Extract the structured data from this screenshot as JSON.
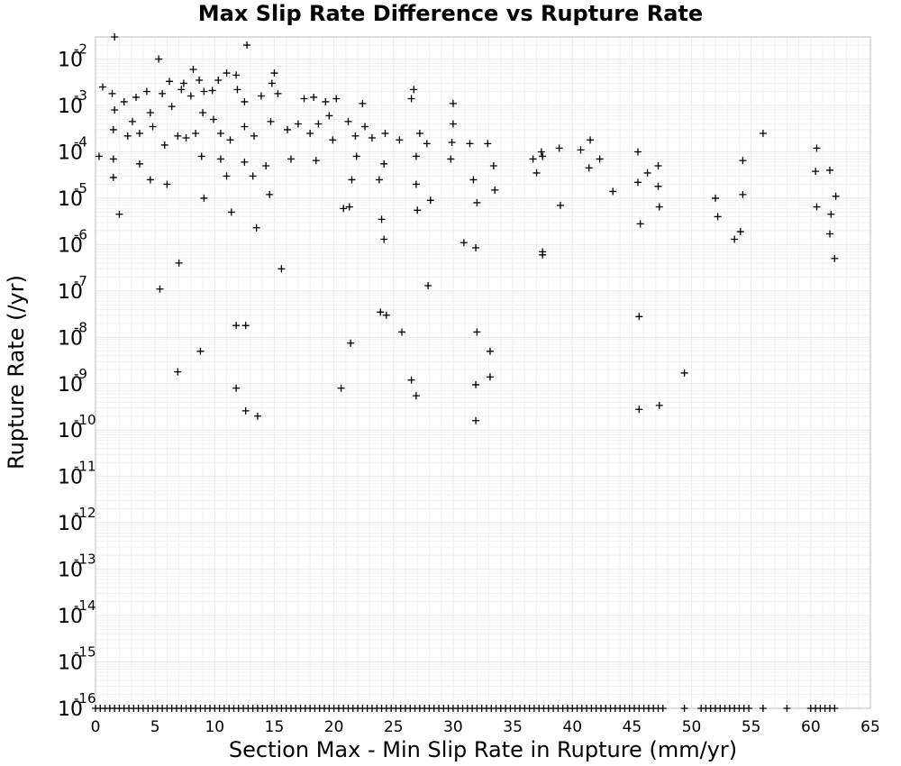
{
  "chart_data": {
    "type": "scatter",
    "title": "Max Slip Rate Difference vs Rupture Rate",
    "xlabel": "Section Max - Min Slip Rate in Rupture (mm/yr)",
    "ylabel": "Rupture Rate (/yr)",
    "xlim": [
      0,
      65
    ],
    "ylim": [
      1e-16,
      0.03
    ],
    "yscale": "log",
    "grid": true,
    "marker": "+",
    "x_ticks": [
      "0",
      "5",
      "10",
      "15",
      "20",
      "25",
      "30",
      "35",
      "40",
      "45",
      "50",
      "55",
      "60",
      "65"
    ],
    "y_ticks": [
      {
        "base": "10",
        "exp": "-16",
        "value": 1e-16
      },
      {
        "base": "10",
        "exp": "-15",
        "value": 1e-15
      },
      {
        "base": "10",
        "exp": "-14",
        "value": 1e-14
      },
      {
        "base": "10",
        "exp": "-13",
        "value": 1e-13
      },
      {
        "base": "10",
        "exp": "-12",
        "value": 1e-12
      },
      {
        "base": "10",
        "exp": "-11",
        "value": 1e-11
      },
      {
        "base": "10",
        "exp": "-10",
        "value": 1e-10
      },
      {
        "base": "10",
        "exp": "-9",
        "value": 1e-09
      },
      {
        "base": "10",
        "exp": "-8",
        "value": 1e-08
      },
      {
        "base": "10",
        "exp": "-7",
        "value": 1e-07
      },
      {
        "base": "10",
        "exp": "-6",
        "value": 1e-06
      },
      {
        "base": "10",
        "exp": "-5",
        "value": 1e-05
      },
      {
        "base": "10",
        "exp": "-4",
        "value": 0.0001
      },
      {
        "base": "10",
        "exp": "-3",
        "value": 0.001
      },
      {
        "base": "10",
        "exp": "-2",
        "value": 0.01
      }
    ],
    "points": [
      [
        1.6,
        0.03
      ],
      [
        12.7,
        0.02
      ],
      [
        5.3,
        0.01
      ],
      [
        8.2,
        0.006
      ],
      [
        15.0,
        0.005
      ],
      [
        11.0,
        0.005
      ],
      [
        11.8,
        0.0045
      ],
      [
        8.7,
        0.0035
      ],
      [
        6.2,
        0.0033
      ],
      [
        7.4,
        0.003
      ],
      [
        10.3,
        0.0035
      ],
      [
        14.8,
        0.003
      ],
      [
        26.7,
        0.0022
      ],
      [
        0.6,
        0.0025
      ],
      [
        1.4,
        0.0018
      ],
      [
        2.4,
        0.0012
      ],
      [
        3.4,
        0.0015
      ],
      [
        4.3,
        0.002
      ],
      [
        5.6,
        0.0018
      ],
      [
        7.2,
        0.0022
      ],
      [
        8.0,
        0.0016
      ],
      [
        9.1,
        0.002
      ],
      [
        9.8,
        0.0021
      ],
      [
        11.9,
        0.0022
      ],
      [
        13.9,
        0.0016
      ],
      [
        15.3,
        0.0018
      ],
      [
        12.5,
        0.0012
      ],
      [
        17.5,
        0.0014
      ],
      [
        18.3,
        0.0015
      ],
      [
        19.3,
        0.0012
      ],
      [
        20.2,
        0.0014
      ],
      [
        22.4,
        0.0011
      ],
      [
        26.5,
        0.0014
      ],
      [
        30.0,
        0.0011
      ],
      [
        1.6,
        0.0008
      ],
      [
        3.1,
        0.00045
      ],
      [
        4.6,
        0.0007
      ],
      [
        6.4,
        0.00095
      ],
      [
        9.0,
        0.0007
      ],
      [
        9.9,
        0.0005
      ],
      [
        12.5,
        0.00035
      ],
      [
        14.7,
        0.00045
      ],
      [
        17.0,
        0.0004
      ],
      [
        18.7,
        0.0004
      ],
      [
        19.6,
        0.0006
      ],
      [
        21.2,
        0.00045
      ],
      [
        22.6,
        0.00035
      ],
      [
        24.3,
        0.00025
      ],
      [
        27.2,
        0.00025
      ],
      [
        30.0,
        0.0004
      ],
      [
        1.5,
        0.0003
      ],
      [
        2.7,
        0.00022
      ],
      [
        3.7,
        0.00025
      ],
      [
        4.8,
        0.00035
      ],
      [
        6.9,
        0.00022
      ],
      [
        7.6,
        0.0002
      ],
      [
        8.4,
        0.00025
      ],
      [
        10.5,
        0.00025
      ],
      [
        11.3,
        0.00018
      ],
      [
        13.3,
        0.00022
      ],
      [
        16.1,
        0.0003
      ],
      [
        18.0,
        0.00025
      ],
      [
        19.9,
        0.00018
      ],
      [
        21.8,
        0.00022
      ],
      [
        23.2,
        0.0002
      ],
      [
        25.5,
        0.00018
      ],
      [
        27.8,
        0.00015
      ],
      [
        29.9,
        0.00016
      ],
      [
        31.4,
        0.00015
      ],
      [
        32.9,
        0.00015
      ],
      [
        36.7,
        7e-05
      ],
      [
        37.4,
        0.0001
      ],
      [
        38.9,
        0.00012
      ],
      [
        40.7,
        0.00011
      ],
      [
        41.5,
        0.00018
      ],
      [
        42.3,
        7e-05
      ],
      [
        56.0,
        0.00025
      ],
      [
        60.5,
        0.00012
      ],
      [
        0.3,
        8e-05
      ],
      [
        1.5,
        7e-05
      ],
      [
        3.7,
        5.5e-05
      ],
      [
        5.8,
        0.00014
      ],
      [
        8.9,
        8e-05
      ],
      [
        10.5,
        7e-05
      ],
      [
        12.5,
        6e-05
      ],
      [
        14.3,
        5e-05
      ],
      [
        16.4,
        7e-05
      ],
      [
        18.5,
        6.5e-05
      ],
      [
        21.9,
        8e-05
      ],
      [
        24.2,
        5.5e-05
      ],
      [
        26.9,
        8e-05
      ],
      [
        29.8,
        7e-05
      ],
      [
        33.4,
        5e-05
      ],
      [
        37.5,
        8e-05
      ],
      [
        41.4,
        4.5e-05
      ],
      [
        45.5,
        0.0001
      ],
      [
        46.3,
        3.5e-05
      ],
      [
        47.2,
        5e-05
      ],
      [
        54.3,
        6.5e-05
      ],
      [
        60.4,
        3.8e-05
      ],
      [
        61.6,
        4e-05
      ],
      [
        1.5,
        2.8e-05
      ],
      [
        4.6,
        2.5e-05
      ],
      [
        6.0,
        2e-05
      ],
      [
        9.1,
        1e-05
      ],
      [
        11.0,
        3e-05
      ],
      [
        13.2,
        3e-05
      ],
      [
        14.6,
        1.2e-05
      ],
      [
        21.5,
        2.5e-05
      ],
      [
        23.8,
        2.5e-05
      ],
      [
        26.9,
        2e-05
      ],
      [
        31.7,
        2.5e-05
      ],
      [
        33.5,
        1.5e-05
      ],
      [
        37.0,
        3.5e-05
      ],
      [
        43.4,
        1.4e-05
      ],
      [
        45.5,
        2.2e-05
      ],
      [
        47.2,
        1.8e-05
      ],
      [
        52.0,
        1e-05
      ],
      [
        54.3,
        1.2e-05
      ],
      [
        62.1,
        1.1e-05
      ],
      [
        2.0,
        4.5e-06
      ],
      [
        11.4,
        5e-06
      ],
      [
        20.8,
        6e-06
      ],
      [
        21.3,
        6.5e-06
      ],
      [
        27.0,
        5.5e-06
      ],
      [
        28.1,
        9e-06
      ],
      [
        32.0,
        8e-06
      ],
      [
        39.0,
        7e-06
      ],
      [
        45.7,
        2.8e-06
      ],
      [
        47.3,
        6.5e-06
      ],
      [
        52.2,
        4e-06
      ],
      [
        53.6,
        1.3e-06
      ],
      [
        54.1,
        1.9e-06
      ],
      [
        60.5,
        6.5e-06
      ],
      [
        61.7,
        4.5e-06
      ],
      [
        61.6,
        1.7e-06
      ],
      [
        62.0,
        5e-07
      ],
      [
        13.5,
        2.3e-06
      ],
      [
        24.0,
        3.5e-06
      ],
      [
        24.2,
        1.3e-06
      ],
      [
        30.9,
        1.1e-06
      ],
      [
        31.9,
        8.5e-07
      ],
      [
        37.5,
        7e-07
      ],
      [
        37.5,
        6e-07
      ],
      [
        7.0,
        4e-07
      ],
      [
        15.6,
        3e-07
      ],
      [
        5.4,
        1.1e-07
      ],
      [
        27.9,
        1.3e-07
      ],
      [
        11.8,
        1.8e-08
      ],
      [
        12.6,
        1.8e-08
      ],
      [
        23.9,
        3.5e-08
      ],
      [
        24.4,
        3e-08
      ],
      [
        25.7,
        1.3e-08
      ],
      [
        45.6,
        2.8e-08
      ],
      [
        32.0,
        1.3e-08
      ],
      [
        8.8,
        5e-09
      ],
      [
        21.4,
        7.5e-09
      ],
      [
        33.1,
        5e-09
      ],
      [
        6.9,
        1.8e-09
      ],
      [
        26.5,
        1.2e-09
      ],
      [
        33.1,
        1.4e-09
      ],
      [
        49.4,
        1.7e-09
      ],
      [
        11.8,
        8e-10
      ],
      [
        20.6,
        8e-10
      ],
      [
        26.9,
        5.5e-10
      ],
      [
        31.9,
        9.5e-10
      ],
      [
        12.6,
        2.6e-10
      ],
      [
        13.6,
        2e-10
      ],
      [
        31.9,
        1.6e-10
      ],
      [
        45.6,
        2.8e-10
      ],
      [
        47.3,
        3.4e-10
      ]
    ],
    "floor_points_y": 1e-16,
    "floor_points_x": [
      0.0,
      0.4,
      0.8,
      1.2,
      1.6,
      2.0,
      2.4,
      2.8,
      3.2,
      3.6,
      4.0,
      4.4,
      4.8,
      5.2,
      5.6,
      6.0,
      6.4,
      6.8,
      7.2,
      7.6,
      8.0,
      8.4,
      8.8,
      9.2,
      9.6,
      10.0,
      10.4,
      10.8,
      11.2,
      11.6,
      12.0,
      12.4,
      12.8,
      13.2,
      13.6,
      14.0,
      14.4,
      14.8,
      15.2,
      15.6,
      16.0,
      16.4,
      16.8,
      17.2,
      17.6,
      18.0,
      18.4,
      18.8,
      19.2,
      19.6,
      20.0,
      20.4,
      20.8,
      21.2,
      21.6,
      22.0,
      22.4,
      22.8,
      23.2,
      23.6,
      24.0,
      24.4,
      24.8,
      25.2,
      25.6,
      26.0,
      26.4,
      26.8,
      27.2,
      27.6,
      28.0,
      28.4,
      28.8,
      29.2,
      29.6,
      30.0,
      30.4,
      30.8,
      31.2,
      31.6,
      32.0,
      32.4,
      32.8,
      33.2,
      33.6,
      34.0,
      34.4,
      34.8,
      35.2,
      35.6,
      36.0,
      36.4,
      36.8,
      37.2,
      37.6,
      38.0,
      38.4,
      38.8,
      39.2,
      39.6,
      40.0,
      40.4,
      40.8,
      41.2,
      41.6,
      42.0,
      42.4,
      42.8,
      43.2,
      43.6,
      44.0,
      44.4,
      44.8,
      45.2,
      45.6,
      46.0,
      46.4,
      46.8,
      47.2,
      47.6,
      49.4,
      50.8,
      51.2,
      51.6,
      52.0,
      52.4,
      52.8,
      53.2,
      53.6,
      54.0,
      54.4,
      54.8,
      56.0,
      58.0,
      60.0,
      60.4,
      60.8,
      61.2,
      61.6,
      62.0
    ]
  }
}
